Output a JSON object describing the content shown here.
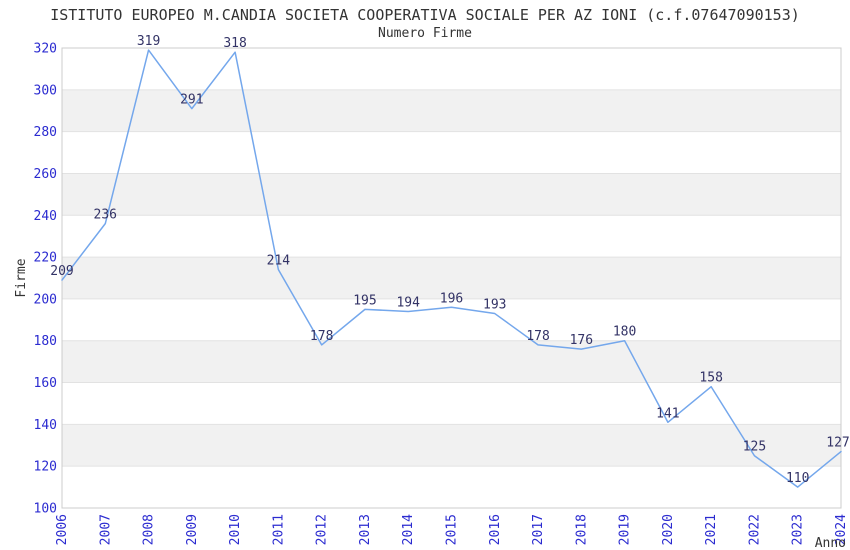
{
  "chart_data": {
    "type": "line",
    "title": "ISTITUTO EUROPEO M.CANDIA SOCIETA COOPERATIVA SOCIALE PER AZ IONI (c.f.07647090153)",
    "subtitle": "Numero Firme",
    "xlabel": "Anno",
    "ylabel": "Firme",
    "categories": [
      "2006",
      "2007",
      "2008",
      "2009",
      "2010",
      "2011",
      "2012",
      "2013",
      "2014",
      "2015",
      "2016",
      "2017",
      "2018",
      "2019",
      "2020",
      "2021",
      "2022",
      "2023",
      "2024"
    ],
    "values": [
      209,
      236,
      319,
      291,
      318,
      214,
      178,
      195,
      194,
      196,
      193,
      178,
      176,
      180,
      141,
      158,
      125,
      110,
      127
    ],
    "ylim": [
      100,
      320
    ],
    "ytick_step": 20,
    "yticks": [
      100,
      120,
      140,
      160,
      180,
      200,
      220,
      240,
      260,
      280,
      300,
      320
    ],
    "grid": "alternating-horizontal-bands",
    "legend_position": "none",
    "point_labels_shown": true,
    "colors": {
      "line": "#74a7ec",
      "tick_label": "#2b2bd0",
      "point_label": "#333366",
      "band": "#f1f1f1",
      "gridline": "#e2e2e2",
      "plot_border": "#cccccc",
      "title_text": "#333333",
      "axis_title_text": "#333333",
      "background": "#ffffff"
    }
  }
}
